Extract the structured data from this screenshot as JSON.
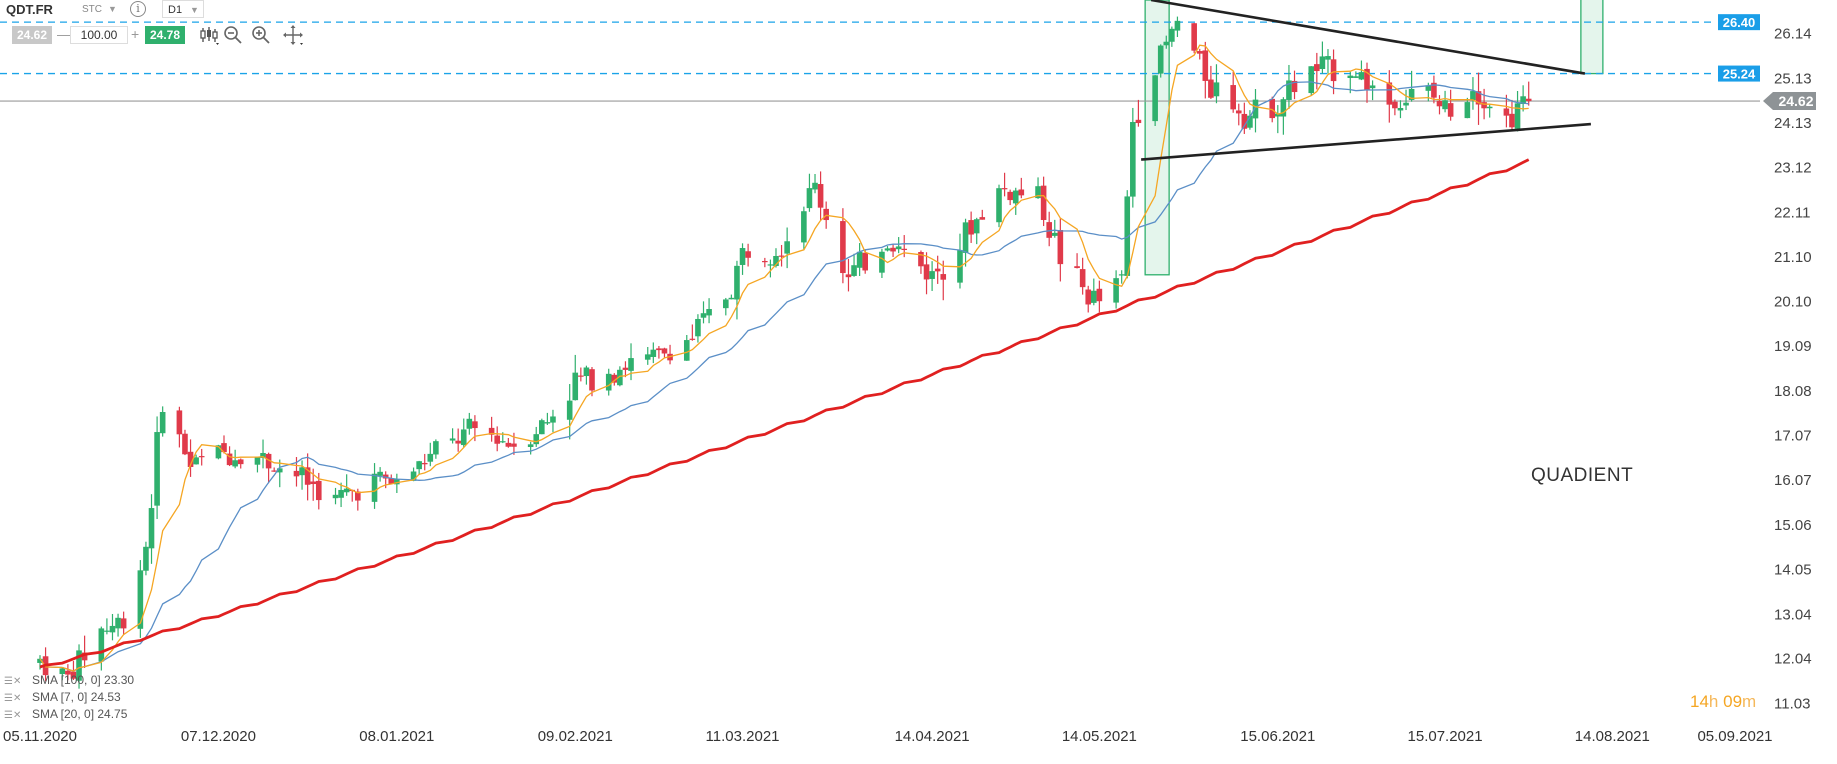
{
  "toolbar": {
    "symbol": "QDT.FR",
    "market": "STC",
    "timeframe": "D1",
    "info_icon": "info-icon",
    "bid": "24.62",
    "quantity": "100.00",
    "ask": "24.78",
    "minus_label": "—",
    "plus_label": "+",
    "tools": [
      "chart-type-icon",
      "zoom-out-icon",
      "zoom-in-icon",
      "crosshair-move-icon"
    ]
  },
  "price_labels": {
    "level_high": "26.40",
    "level_mid": "25.24",
    "current": "24.62"
  },
  "annotation": "QUADIENT",
  "timer": {
    "hours": "14",
    "h_unit": "h",
    "minutes": "09",
    "m_unit": "m"
  },
  "legend": [
    {
      "text": "SMA [100, 0] 23.30",
      "color": "#e02020"
    },
    {
      "text": "SMA [7, 0] 24.53",
      "color": "#f5a623"
    },
    {
      "text": "SMA [20, 0] 24.75",
      "color": "#5b8fc7"
    }
  ],
  "colors": {
    "up": "#2fb06d",
    "down": "#e03a4a",
    "sma100": "#e02020",
    "sma7": "#f5a623",
    "sma20": "#5b8fc7",
    "level_line": "#1aa3e8",
    "price_tag_blue": "#1a9ee8",
    "price_tag_grey": "#8e9396",
    "highlight": "#2fb06d"
  },
  "chart_data": {
    "type": "candlestick",
    "y_axis": {
      "ticks": [
        "26.14",
        "25.13",
        "24.13",
        "23.12",
        "22.11",
        "21.10",
        "20.10",
        "19.09",
        "18.08",
        "17.07",
        "16.07",
        "15.06",
        "14.05",
        "13.04",
        "12.04",
        "11.03"
      ],
      "range": [
        10.7,
        26.9
      ]
    },
    "x_axis": {
      "ticks": [
        "05.11.2020",
        "07.12.2020",
        "08.01.2021",
        "09.02.2021",
        "11.03.2021",
        "14.04.2021",
        "14.05.2021",
        "15.06.2021",
        "15.07.2021",
        "14.08.2021",
        "05.09.2021"
      ]
    },
    "horizontal_levels": [
      26.4,
      25.24
    ],
    "current_price": 24.62,
    "series": [
      {
        "name": "SMA [100, 0]",
        "value": 23.3
      },
      {
        "name": "SMA [7, 0]",
        "value": 24.53
      },
      {
        "name": "SMA [20, 0]",
        "value": 24.75
      }
    ],
    "trendlines": [
      {
        "from": [
          "2021-05-24",
          26.9
        ],
        "to": [
          "2021-08-06",
          25.24
        ]
      },
      {
        "from": [
          "2021-05-24",
          23.3
        ],
        "to": [
          "2021-08-06",
          24.1
        ]
      }
    ],
    "close_path": [
      [
        "2020-11-05",
        12.0
      ],
      [
        "2020-11-10",
        11.6
      ],
      [
        "2020-11-16",
        12.7
      ],
      [
        "2020-11-20",
        12.9
      ],
      [
        "2020-11-24",
        14.6
      ],
      [
        "2020-11-27",
        17.9
      ],
      [
        "2020-12-02",
        16.4
      ],
      [
        "2020-12-07",
        16.7
      ],
      [
        "2020-12-14",
        16.6
      ],
      [
        "2020-12-21",
        16.2
      ],
      [
        "2020-12-28",
        15.6
      ],
      [
        "2021-01-04",
        16.1
      ],
      [
        "2021-01-08",
        16.0
      ],
      [
        "2021-01-15",
        16.7
      ],
      [
        "2021-01-22",
        17.2
      ],
      [
        "2021-01-29",
        16.9
      ],
      [
        "2021-02-04",
        17.4
      ],
      [
        "2021-02-09",
        18.3
      ],
      [
        "2021-02-16",
        18.6
      ],
      [
        "2021-02-23",
        18.8
      ],
      [
        "2021-03-02",
        19.3
      ],
      [
        "2021-03-09",
        20.4
      ],
      [
        "2021-03-11",
        21.2
      ],
      [
        "2021-03-18",
        21.4
      ],
      [
        "2021-03-24",
        22.7
      ],
      [
        "2021-03-30",
        20.6
      ],
      [
        "2021-04-06",
        21.5
      ],
      [
        "2021-04-14",
        20.7
      ],
      [
        "2021-04-20",
        21.6
      ],
      [
        "2021-04-26",
        22.6
      ],
      [
        "2021-05-03",
        22.5
      ],
      [
        "2021-05-07",
        21.1
      ],
      [
        "2021-05-12",
        20.2
      ],
      [
        "2021-05-14",
        20.1
      ],
      [
        "2021-05-18",
        20.6
      ],
      [
        "2021-05-20",
        24.2
      ],
      [
        "2021-05-24",
        25.4
      ],
      [
        "2021-05-28",
        26.4
      ],
      [
        "2021-06-03",
        25.0
      ],
      [
        "2021-06-10",
        24.3
      ],
      [
        "2021-06-15",
        24.6
      ],
      [
        "2021-06-21",
        25.3
      ],
      [
        "2021-06-28",
        25.4
      ],
      [
        "2021-07-05",
        24.6
      ],
      [
        "2021-07-12",
        24.8
      ],
      [
        "2021-07-15",
        24.4
      ],
      [
        "2021-07-20",
        25.0
      ],
      [
        "2021-07-26",
        24.2
      ],
      [
        "2021-07-30",
        24.62
      ]
    ]
  }
}
